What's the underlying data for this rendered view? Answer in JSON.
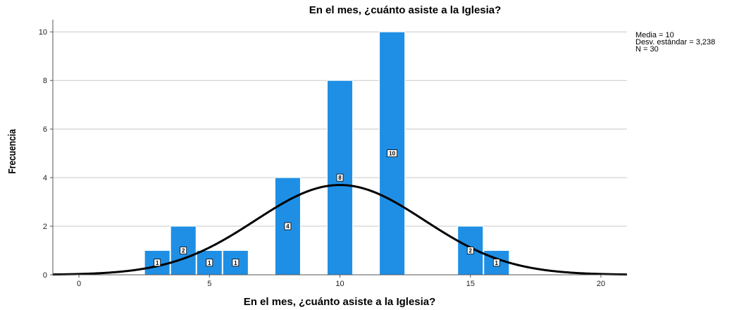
{
  "chart_data": {
    "type": "bar",
    "title": "En el mes, ¿cuánto asiste a la Iglesia?",
    "xlabel": "En el mes, ¿cuánto asiste a la Iglesia?",
    "ylabel": "Frecuencia",
    "x": [
      3,
      4,
      5,
      6,
      8,
      10,
      12,
      15,
      16
    ],
    "values": [
      1,
      2,
      1,
      1,
      4,
      8,
      10,
      2,
      1
    ],
    "data_labels": [
      "1",
      "2",
      "1",
      "1",
      "4",
      "8",
      "10",
      "2",
      "1"
    ],
    "xlim": [
      -1,
      21
    ],
    "ylim": [
      0,
      10.5
    ],
    "x_ticks": [
      0,
      5,
      10,
      15,
      20
    ],
    "y_ticks": [
      0,
      2,
      4,
      6,
      8,
      10
    ],
    "grid": "horizontal",
    "bar_color": "#1f8fe5",
    "curve_color": "#000000",
    "normal_curve": {
      "mean": 10,
      "sd": 3.238,
      "n": 30,
      "bin_width": 1
    },
    "stats": {
      "mean_label": "Media = 10",
      "sd_label": "Desv. estándar = 3,238",
      "n_label": "N = 30"
    }
  }
}
